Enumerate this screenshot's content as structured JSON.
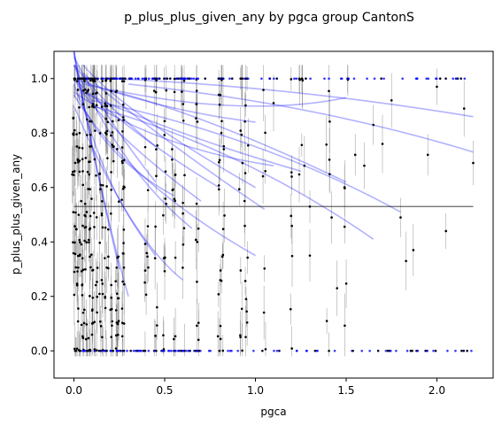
{
  "chart_data": {
    "type": "scatter",
    "title": "p_plus_plus_given_any by pgca group CantonS",
    "xlabel": "pgca",
    "ylabel": "p_plus_plus_given_any",
    "xlim": [
      -0.11,
      2.31
    ],
    "ylim": [
      -0.1,
      1.1
    ],
    "xticks": [
      0.0,
      0.5,
      1.0,
      1.5,
      2.0
    ],
    "xtick_labels": [
      "0.0",
      "0.5",
      "1.0",
      "1.5",
      "2.0"
    ],
    "yticks": [
      0.0,
      0.2,
      0.4,
      0.6,
      0.8,
      1.0
    ],
    "ytick_labels": [
      "0.0",
      "0.2",
      "0.4",
      "0.6",
      "0.8",
      "1.0"
    ],
    "grid": false,
    "legend": "none",
    "colors": {
      "points": "#000000",
      "errorbars": "#808080",
      "fits": "#0000ff",
      "overall_mean": "#000000",
      "boundary_points": "#0000ff"
    },
    "overall_mean": {
      "y": 0.53,
      "x_start": 0.0,
      "x_end": 2.2
    },
    "fit_curves": [
      {
        "x": [
          0.0,
          0.2,
          0.45
        ],
        "y": [
          1.08,
          0.85,
          0.62
        ]
      },
      {
        "x": [
          0.0,
          0.15,
          0.3
        ],
        "y": [
          1.1,
          0.6,
          0.2
        ]
      },
      {
        "x": [
          0.0,
          0.3,
          0.65
        ],
        "y": [
          1.05,
          0.7,
          0.45
        ]
      },
      {
        "x": [
          0.05,
          0.4,
          1.0
        ],
        "y": [
          1.05,
          0.85,
          0.6
        ]
      },
      {
        "x": [
          0.0,
          0.5,
          1.1
        ],
        "y": [
          0.95,
          0.78,
          0.68
        ]
      },
      {
        "x": [
          0.05,
          0.7,
          1.5
        ],
        "y": [
          0.98,
          0.85,
          0.62
        ]
      },
      {
        "x": [
          0.1,
          0.9,
          1.65
        ],
        "y": [
          0.9,
          0.7,
          0.41
        ]
      },
      {
        "x": [
          0.1,
          1.0,
          1.8
        ],
        "y": [
          0.92,
          0.75,
          0.51
        ]
      },
      {
        "x": [
          0.2,
          1.2,
          2.2
        ],
        "y": [
          1.0,
          0.95,
          0.86
        ]
      },
      {
        "x": [
          0.3,
          1.3,
          2.2
        ],
        "y": [
          0.98,
          0.88,
          0.73
        ]
      },
      {
        "x": [
          0.0,
          0.3,
          0.6
        ],
        "y": [
          0.9,
          0.5,
          0.26
        ]
      },
      {
        "x": [
          0.0,
          0.2,
          0.55
        ],
        "y": [
          0.98,
          0.75,
          0.57
        ]
      },
      {
        "x": [
          0.0,
          0.5,
          1.0
        ],
        "y": [
          1.0,
          0.9,
          0.84
        ]
      },
      {
        "x": [
          0.0,
          0.15,
          0.45
        ],
        "y": [
          1.1,
          0.7,
          0.35
        ]
      },
      {
        "x": [
          0.0,
          0.25,
          0.7
        ],
        "y": [
          1.0,
          0.8,
          0.55
        ]
      },
      {
        "x": [
          0.05,
          0.6,
          1.25
        ],
        "y": [
          0.95,
          0.8,
          0.66
        ]
      },
      {
        "x": [
          0.05,
          0.5,
          1.05
        ],
        "y": [
          1.02,
          0.78,
          0.52
        ]
      },
      {
        "x": [
          0.0,
          0.4,
          1.0
        ],
        "y": [
          0.94,
          0.63,
          0.35
        ]
      },
      {
        "x": [
          0.2,
          0.9,
          1.5
        ],
        "y": [
          0.96,
          0.9,
          0.93
        ]
      },
      {
        "x": [
          0.0,
          0.1,
          0.25
        ],
        "y": [
          1.1,
          0.75,
          0.3
        ]
      },
      {
        "x": [
          0.0,
          0.2,
          0.45
        ],
        "y": [
          1.05,
          0.9,
          0.75
        ]
      },
      {
        "x": [
          0.0,
          0.35,
          0.8
        ],
        "y": [
          1.0,
          0.8,
          0.6
        ]
      }
    ],
    "scatter_columns_x": [
      0.0,
      0.02,
      0.04,
      0.06,
      0.08,
      0.1,
      0.12,
      0.15,
      0.18,
      0.21,
      0.24,
      0.27,
      0.4,
      0.45,
      0.5,
      0.55,
      0.6,
      0.68,
      0.8,
      0.82,
      0.92,
      0.95,
      1.05,
      1.2,
      1.25,
      1.4,
      1.5
    ],
    "isolated_points": [
      {
        "x": 1.27,
        "y": 0.68
      },
      {
        "x": 1.3,
        "y": 0.53
      },
      {
        "x": 1.42,
        "y": 0.49
      },
      {
        "x": 1.45,
        "y": 0.23
      },
      {
        "x": 1.55,
        "y": 0.72
      },
      {
        "x": 1.65,
        "y": 0.83
      },
      {
        "x": 1.75,
        "y": 0.92
      },
      {
        "x": 1.8,
        "y": 0.49
      },
      {
        "x": 1.83,
        "y": 0.33
      },
      {
        "x": 1.87,
        "y": 0.37
      },
      {
        "x": 1.95,
        "y": 0.72
      },
      {
        "x": 2.0,
        "y": 0.97
      },
      {
        "x": 2.05,
        "y": 0.44
      },
      {
        "x": 2.2,
        "y": 0.69
      },
      {
        "x": 2.15,
        "y": 0.89
      },
      {
        "x": 1.7,
        "y": 0.76
      },
      {
        "x": 1.6,
        "y": 0.68
      },
      {
        "x": 1.3,
        "y": 0.35
      },
      {
        "x": 1.2,
        "y": 0.64
      },
      {
        "x": 1.1,
        "y": 0.91
      }
    ]
  }
}
